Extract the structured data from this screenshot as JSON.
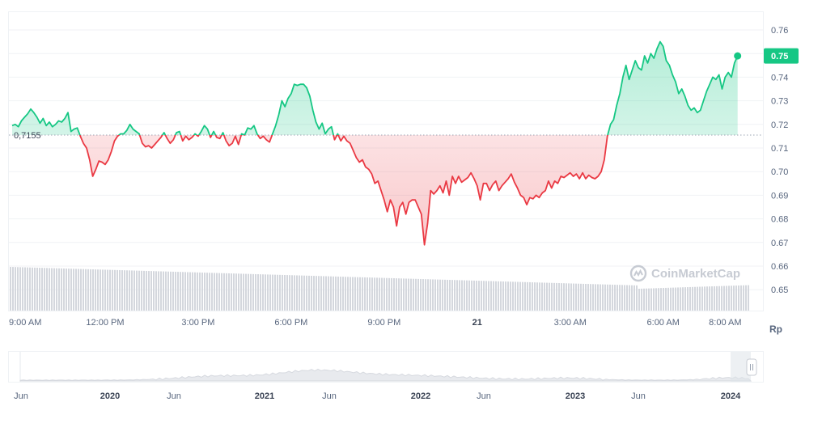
{
  "chart_data": {
    "type": "line",
    "subtype": "baseline-area",
    "unit_label": "Rp",
    "baseline": {
      "value": 0.7155,
      "label": "0,7155"
    },
    "current_price": {
      "value": 0.749,
      "label": "0.75"
    },
    "ylim": [
      0.645,
      0.767
    ],
    "y_ticks": [
      {
        "value": 0.76,
        "label": "0.76"
      },
      {
        "value": 0.75,
        "label": "0.75"
      },
      {
        "value": 0.74,
        "label": "0.74"
      },
      {
        "value": 0.73,
        "label": "0.73"
      },
      {
        "value": 0.72,
        "label": "0.72"
      },
      {
        "value": 0.71,
        "label": "0.71"
      },
      {
        "value": 0.7,
        "label": "0.70"
      },
      {
        "value": 0.69,
        "label": "0.69"
      },
      {
        "value": 0.68,
        "label": "0.68"
      },
      {
        "value": 0.67,
        "label": "0.67"
      },
      {
        "value": 0.66,
        "label": "0.66"
      },
      {
        "value": 0.65,
        "label": "0.65"
      }
    ],
    "x_range_hours": [
      0,
      23.8
    ],
    "x_ticks": [
      {
        "t": 0.0,
        "label": "9:00 AM",
        "bold": false
      },
      {
        "t": 3.0,
        "label": "12:00 PM",
        "bold": false
      },
      {
        "t": 6.0,
        "label": "3:00 PM",
        "bold": false
      },
      {
        "t": 9.0,
        "label": "6:00 PM",
        "bold": false
      },
      {
        "t": 12.0,
        "label": "9:00 PM",
        "bold": false
      },
      {
        "t": 15.0,
        "label": "21",
        "bold": true
      },
      {
        "t": 18.0,
        "label": "3:00 AM",
        "bold": false
      },
      {
        "t": 21.0,
        "label": "6:00 AM",
        "bold": false
      },
      {
        "t": 23.0,
        "label": "8:00 AM",
        "bold": false
      }
    ],
    "colors": {
      "up": "#16c784",
      "down": "#ea3943",
      "volume": "#d4d7dd",
      "navigator": "#e6e8ec"
    },
    "points": [
      [
        0.0,
        0.7195
      ],
      [
        0.1,
        0.72
      ],
      [
        0.2,
        0.719
      ],
      [
        0.3,
        0.7215
      ],
      [
        0.4,
        0.723
      ],
      [
        0.5,
        0.7245
      ],
      [
        0.6,
        0.7265
      ],
      [
        0.7,
        0.725
      ],
      [
        0.8,
        0.723
      ],
      [
        0.9,
        0.7205
      ],
      [
        1.0,
        0.7225
      ],
      [
        1.1,
        0.7195
      ],
      [
        1.2,
        0.721
      ],
      [
        1.3,
        0.719
      ],
      [
        1.4,
        0.72
      ],
      [
        1.5,
        0.7215
      ],
      [
        1.6,
        0.721
      ],
      [
        1.7,
        0.7225
      ],
      [
        1.8,
        0.725
      ],
      [
        1.9,
        0.717
      ],
      [
        2.0,
        0.718
      ],
      [
        2.1,
        0.7185
      ],
      [
        2.2,
        0.715
      ],
      [
        2.3,
        0.712
      ],
      [
        2.4,
        0.71
      ],
      [
        2.5,
        0.705
      ],
      [
        2.6,
        0.698
      ],
      [
        2.7,
        0.701
      ],
      [
        2.8,
        0.7045
      ],
      [
        2.9,
        0.704
      ],
      [
        3.0,
        0.703
      ],
      [
        3.1,
        0.705
      ],
      [
        3.2,
        0.7085
      ],
      [
        3.3,
        0.713
      ],
      [
        3.4,
        0.715
      ],
      [
        3.5,
        0.716
      ],
      [
        3.6,
        0.716
      ],
      [
        3.7,
        0.7175
      ],
      [
        3.8,
        0.72
      ],
      [
        3.9,
        0.718
      ],
      [
        4.0,
        0.717
      ],
      [
        4.1,
        0.716
      ],
      [
        4.2,
        0.712
      ],
      [
        4.3,
        0.7105
      ],
      [
        4.4,
        0.711
      ],
      [
        4.5,
        0.71
      ],
      [
        4.6,
        0.7115
      ],
      [
        4.7,
        0.713
      ],
      [
        4.8,
        0.7145
      ],
      [
        4.9,
        0.7165
      ],
      [
        5.0,
        0.714
      ],
      [
        5.1,
        0.712
      ],
      [
        5.2,
        0.7135
      ],
      [
        5.3,
        0.7165
      ],
      [
        5.4,
        0.717
      ],
      [
        5.5,
        0.713
      ],
      [
        5.6,
        0.715
      ],
      [
        5.7,
        0.7135
      ],
      [
        5.8,
        0.7145
      ],
      [
        5.9,
        0.716
      ],
      [
        6.0,
        0.715
      ],
      [
        6.1,
        0.717
      ],
      [
        6.2,
        0.7195
      ],
      [
        6.3,
        0.718
      ],
      [
        6.4,
        0.7145
      ],
      [
        6.5,
        0.717
      ],
      [
        6.6,
        0.7145
      ],
      [
        6.7,
        0.714
      ],
      [
        6.8,
        0.7165
      ],
      [
        6.9,
        0.713
      ],
      [
        7.0,
        0.711
      ],
      [
        7.1,
        0.712
      ],
      [
        7.2,
        0.715
      ],
      [
        7.3,
        0.7115
      ],
      [
        7.4,
        0.716
      ],
      [
        7.5,
        0.7155
      ],
      [
        7.6,
        0.7185
      ],
      [
        7.7,
        0.718
      ],
      [
        7.8,
        0.7195
      ],
      [
        7.9,
        0.716
      ],
      [
        8.0,
        0.714
      ],
      [
        8.1,
        0.715
      ],
      [
        8.2,
        0.7135
      ],
      [
        8.3,
        0.7125
      ],
      [
        8.4,
        0.716
      ],
      [
        8.5,
        0.7195
      ],
      [
        8.6,
        0.724
      ],
      [
        8.7,
        0.73
      ],
      [
        8.8,
        0.7275
      ],
      [
        8.9,
        0.731
      ],
      [
        9.0,
        0.733
      ],
      [
        9.1,
        0.737
      ],
      [
        9.2,
        0.7365
      ],
      [
        9.3,
        0.737
      ],
      [
        9.4,
        0.737
      ],
      [
        9.5,
        0.7355
      ],
      [
        9.6,
        0.732
      ],
      [
        9.7,
        0.726
      ],
      [
        9.8,
        0.721
      ],
      [
        9.9,
        0.718
      ],
      [
        10.0,
        0.7205
      ],
      [
        10.1,
        0.716
      ],
      [
        10.2,
        0.718
      ],
      [
        10.3,
        0.719
      ],
      [
        10.4,
        0.7135
      ],
      [
        10.5,
        0.716
      ],
      [
        10.6,
        0.713
      ],
      [
        10.7,
        0.715
      ],
      [
        10.8,
        0.713
      ],
      [
        10.9,
        0.712
      ],
      [
        11.0,
        0.709
      ],
      [
        11.1,
        0.706
      ],
      [
        11.2,
        0.704
      ],
      [
        11.3,
        0.705
      ],
      [
        11.4,
        0.702
      ],
      [
        11.5,
        0.701
      ],
      [
        11.6,
        0.699
      ],
      [
        11.7,
        0.695
      ],
      [
        11.8,
        0.696
      ],
      [
        11.9,
        0.692
      ],
      [
        12.0,
        0.688
      ],
      [
        12.1,
        0.683
      ],
      [
        12.2,
        0.688
      ],
      [
        12.3,
        0.685
      ],
      [
        12.4,
        0.677
      ],
      [
        12.5,
        0.685
      ],
      [
        12.6,
        0.687
      ],
      [
        12.7,
        0.682
      ],
      [
        12.8,
        0.687
      ],
      [
        12.9,
        0.688
      ],
      [
        13.0,
        0.688
      ],
      [
        13.1,
        0.685
      ],
      [
        13.2,
        0.682
      ],
      [
        13.3,
        0.669
      ],
      [
        13.4,
        0.678
      ],
      [
        13.5,
        0.692
      ],
      [
        13.6,
        0.6905
      ],
      [
        13.7,
        0.692
      ],
      [
        13.8,
        0.694
      ],
      [
        13.9,
        0.691
      ],
      [
        14.0,
        0.696
      ],
      [
        14.1,
        0.69
      ],
      [
        14.2,
        0.698
      ],
      [
        14.3,
        0.695
      ],
      [
        14.4,
        0.698
      ],
      [
        14.5,
        0.6955
      ],
      [
        14.6,
        0.6965
      ],
      [
        14.7,
        0.6975
      ],
      [
        14.8,
        0.6995
      ],
      [
        14.9,
        0.697
      ],
      [
        15.0,
        0.694
      ],
      [
        15.1,
        0.688
      ],
      [
        15.2,
        0.695
      ],
      [
        15.3,
        0.695
      ],
      [
        15.4,
        0.692
      ],
      [
        15.5,
        0.6945
      ],
      [
        15.6,
        0.696
      ],
      [
        15.7,
        0.692
      ],
      [
        15.8,
        0.694
      ],
      [
        15.9,
        0.6955
      ],
      [
        16.0,
        0.697
      ],
      [
        16.1,
        0.699
      ],
      [
        16.2,
        0.6955
      ],
      [
        16.3,
        0.693
      ],
      [
        16.4,
        0.69
      ],
      [
        16.5,
        0.689
      ],
      [
        16.6,
        0.686
      ],
      [
        16.7,
        0.689
      ],
      [
        16.8,
        0.6885
      ],
      [
        16.9,
        0.69
      ],
      [
        17.0,
        0.689
      ],
      [
        17.1,
        0.691
      ],
      [
        17.2,
        0.692
      ],
      [
        17.3,
        0.696
      ],
      [
        17.4,
        0.693
      ],
      [
        17.5,
        0.696
      ],
      [
        17.6,
        0.695
      ],
      [
        17.7,
        0.698
      ],
      [
        17.8,
        0.6975
      ],
      [
        17.9,
        0.6985
      ],
      [
        18.0,
        0.6995
      ],
      [
        18.1,
        0.698
      ],
      [
        18.2,
        0.699
      ],
      [
        18.3,
        0.697
      ],
      [
        18.4,
        0.6995
      ],
      [
        18.5,
        0.697
      ],
      [
        18.6,
        0.6985
      ],
      [
        18.7,
        0.6975
      ],
      [
        18.8,
        0.697
      ],
      [
        18.9,
        0.698
      ],
      [
        19.0,
        0.7
      ],
      [
        19.1,
        0.705
      ],
      [
        19.2,
        0.715
      ],
      [
        19.3,
        0.72
      ],
      [
        19.4,
        0.722
      ],
      [
        19.5,
        0.728
      ],
      [
        19.6,
        0.733
      ],
      [
        19.7,
        0.74
      ],
      [
        19.8,
        0.745
      ],
      [
        19.9,
        0.739
      ],
      [
        20.0,
        0.743
      ],
      [
        20.1,
        0.747
      ],
      [
        20.2,
        0.744
      ],
      [
        20.3,
        0.743
      ],
      [
        20.4,
        0.749
      ],
      [
        20.5,
        0.746
      ],
      [
        20.6,
        0.75
      ],
      [
        20.7,
        0.748
      ],
      [
        20.8,
        0.752
      ],
      [
        20.9,
        0.755
      ],
      [
        21.0,
        0.753
      ],
      [
        21.1,
        0.747
      ],
      [
        21.2,
        0.745
      ],
      [
        21.3,
        0.741
      ],
      [
        21.4,
        0.738
      ],
      [
        21.5,
        0.733
      ],
      [
        21.6,
        0.735
      ],
      [
        21.7,
        0.732
      ],
      [
        21.8,
        0.728
      ],
      [
        21.9,
        0.726
      ],
      [
        22.0,
        0.727
      ],
      [
        22.1,
        0.725
      ],
      [
        22.2,
        0.726
      ],
      [
        22.3,
        0.73
      ],
      [
        22.4,
        0.734
      ],
      [
        22.5,
        0.737
      ],
      [
        22.6,
        0.74
      ],
      [
        22.7,
        0.739
      ],
      [
        22.8,
        0.741
      ],
      [
        22.9,
        0.735
      ],
      [
        23.0,
        0.74
      ],
      [
        23.1,
        0.742
      ],
      [
        23.2,
        0.74
      ],
      [
        23.3,
        0.746
      ],
      [
        23.4,
        0.749
      ]
    ],
    "navigator_labels": [
      {
        "label": "Jun",
        "bold": false
      },
      {
        "label": "2020",
        "bold": true
      },
      {
        "label": "Jun",
        "bold": false
      },
      {
        "label": "2021",
        "bold": true
      },
      {
        "label": "Jun",
        "bold": false
      },
      {
        "label": "2022",
        "bold": true
      },
      {
        "label": "Jun",
        "bold": false
      },
      {
        "label": "2023",
        "bold": true
      },
      {
        "label": "Jun",
        "bold": false
      },
      {
        "label": "2024",
        "bold": true
      }
    ],
    "watermark": "CoinMarketCap"
  }
}
